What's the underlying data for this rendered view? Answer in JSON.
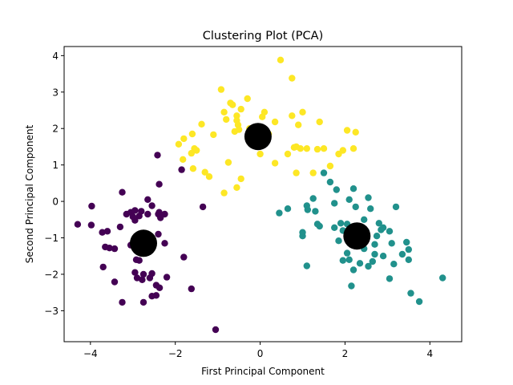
{
  "chart_data": {
    "type": "scatter",
    "title": "Clustering Plot (PCA)",
    "xlabel": "First Principal Component",
    "ylabel": "Second Principal Component",
    "xlim": [
      -4.62,
      4.75
    ],
    "ylim": [
      -3.85,
      4.25
    ],
    "xticks": [
      -4,
      -2,
      0,
      2,
      4
    ],
    "yticks": [
      -3,
      -2,
      -1,
      0,
      1,
      2,
      3,
      4
    ],
    "grid": false,
    "legend": "none",
    "colors": {
      "cluster_0": "#440154",
      "cluster_1": "#21918c",
      "cluster_2": "#fde725",
      "centroid": "#000000"
    },
    "series": [
      {
        "cluster": 0,
        "color": "#440154",
        "points": [
          [
            -4.3,
            -0.63
          ],
          [
            -3.97,
            -0.13
          ],
          [
            -3.98,
            -0.65
          ],
          [
            -3.6,
            -0.82
          ],
          [
            -3.72,
            -0.85
          ],
          [
            -3.55,
            -1.28
          ],
          [
            -3.65,
            -1.25
          ],
          [
            -3.7,
            -1.8
          ],
          [
            -3.43,
            -1.3
          ],
          [
            -3.43,
            -2.21
          ],
          [
            -3.25,
            0.25
          ],
          [
            -3.3,
            -0.7
          ],
          [
            -3.15,
            -0.35
          ],
          [
            -3.05,
            -0.3
          ],
          [
            -3.0,
            -0.42
          ],
          [
            -2.95,
            -0.25
          ],
          [
            -2.95,
            -0.52
          ],
          [
            -2.85,
            -0.4
          ],
          [
            -2.8,
            -0.27
          ],
          [
            -2.9,
            -1.0
          ],
          [
            -3.05,
            -1.2
          ],
          [
            -2.92,
            -1.6
          ],
          [
            -2.85,
            -1.62
          ],
          [
            -2.95,
            -1.95
          ],
          [
            -2.9,
            -2.1
          ],
          [
            -2.75,
            -2.0
          ],
          [
            -2.78,
            -2.15
          ],
          [
            -2.6,
            -2.1
          ],
          [
            -2.55,
            -1.98
          ],
          [
            -2.45,
            -2.3
          ],
          [
            -2.37,
            -2.37
          ],
          [
            -2.55,
            -2.6
          ],
          [
            -2.45,
            -2.58
          ],
          [
            -2.75,
            -2.77
          ],
          [
            -3.25,
            -2.77
          ],
          [
            -2.65,
            -0.35
          ],
          [
            -2.55,
            -0.12
          ],
          [
            -2.65,
            0.05
          ],
          [
            -2.38,
            0.47
          ],
          [
            -2.42,
            1.27
          ],
          [
            -2.4,
            -0.35
          ],
          [
            -2.38,
            -0.3
          ],
          [
            -2.35,
            -0.45
          ],
          [
            -2.25,
            -0.35
          ],
          [
            -2.4,
            -0.9
          ],
          [
            -2.25,
            -1.15
          ],
          [
            -2.2,
            -2.08
          ],
          [
            -1.85,
            0.87
          ],
          [
            -1.8,
            -1.53
          ],
          [
            -1.62,
            -2.4
          ],
          [
            -1.35,
            -0.15
          ],
          [
            -1.05,
            -3.52
          ]
        ]
      },
      {
        "cluster": 1,
        "color": "#21918c",
        "points": [
          [
            0.45,
            -0.32
          ],
          [
            0.65,
            -0.2
          ],
          [
            1.0,
            -0.85
          ],
          [
            1.0,
            -0.95
          ],
          [
            1.1,
            -0.12
          ],
          [
            1.12,
            -0.23
          ],
          [
            1.1,
            -1.77
          ],
          [
            1.25,
            0.08
          ],
          [
            1.3,
            -0.27
          ],
          [
            1.35,
            -0.62
          ],
          [
            1.4,
            -0.68
          ],
          [
            1.5,
            0.78
          ],
          [
            1.65,
            0.53
          ],
          [
            1.75,
            -0.05
          ],
          [
            1.75,
            -0.72
          ],
          [
            1.8,
            0.32
          ],
          [
            1.85,
            -1.08
          ],
          [
            1.9,
            -0.6
          ],
          [
            1.95,
            -0.8
          ],
          [
            1.95,
            -1.62
          ],
          [
            2.05,
            -0.62
          ],
          [
            2.05,
            -1.42
          ],
          [
            2.1,
            0.05
          ],
          [
            2.1,
            -1.6
          ],
          [
            2.15,
            -2.32
          ],
          [
            2.2,
            -1.88
          ],
          [
            2.2,
            0.35
          ],
          [
            2.25,
            -0.15
          ],
          [
            2.3,
            -0.75
          ],
          [
            2.35,
            -1.7
          ],
          [
            2.45,
            -0.5
          ],
          [
            2.45,
            -1.3
          ],
          [
            2.5,
            -0.82
          ],
          [
            2.55,
            0.1
          ],
          [
            2.55,
            -1.78
          ],
          [
            2.6,
            -0.2
          ],
          [
            2.65,
            -1.65
          ],
          [
            2.7,
            -1.18
          ],
          [
            2.7,
            -1.45
          ],
          [
            2.75,
            -0.95
          ],
          [
            2.8,
            -0.6
          ],
          [
            2.85,
            -0.78
          ],
          [
            2.9,
            -0.72
          ],
          [
            2.9,
            -1.5
          ],
          [
            3.05,
            -0.82
          ],
          [
            3.05,
            -2.12
          ],
          [
            3.1,
            -1.15
          ],
          [
            3.15,
            -1.72
          ],
          [
            3.2,
            -0.15
          ],
          [
            3.35,
            -1.45
          ],
          [
            3.45,
            -1.12
          ],
          [
            3.5,
            -1.32
          ],
          [
            3.5,
            -1.6
          ],
          [
            3.55,
            -2.52
          ],
          [
            3.75,
            -2.75
          ],
          [
            4.3,
            -2.1
          ]
        ]
      },
      {
        "cluster": 2,
        "color": "#fde725",
        "points": [
          [
            -1.92,
            1.57
          ],
          [
            -1.82,
            1.15
          ],
          [
            -1.8,
            1.72
          ],
          [
            -1.62,
            1.32
          ],
          [
            -1.6,
            1.85
          ],
          [
            -1.58,
            0.9
          ],
          [
            -1.55,
            1.45
          ],
          [
            -1.5,
            1.4
          ],
          [
            -1.38,
            2.12
          ],
          [
            -1.3,
            0.8
          ],
          [
            -1.2,
            0.68
          ],
          [
            -1.1,
            1.83
          ],
          [
            -0.92,
            3.07
          ],
          [
            -0.85,
            2.45
          ],
          [
            -0.85,
            0.23
          ],
          [
            -0.8,
            2.25
          ],
          [
            -0.75,
            1.07
          ],
          [
            -0.7,
            2.7
          ],
          [
            -0.65,
            2.65
          ],
          [
            -0.6,
            1.92
          ],
          [
            -0.55,
            2.35
          ],
          [
            -0.55,
            2.22
          ],
          [
            -0.52,
            2.1
          ],
          [
            -0.5,
            1.97
          ],
          [
            -0.55,
            0.38
          ],
          [
            -0.45,
            2.53
          ],
          [
            -0.45,
            0.62
          ],
          [
            -0.3,
            2.82
          ],
          [
            -0.25,
            2.0
          ],
          [
            -0.1,
            2.0
          ],
          [
            0.0,
            1.3
          ],
          [
            0.05,
            2.32
          ],
          [
            0.1,
            2.45
          ],
          [
            0.2,
            1.85
          ],
          [
            0.35,
            2.18
          ],
          [
            0.35,
            1.05
          ],
          [
            0.48,
            3.88
          ],
          [
            0.65,
            1.3
          ],
          [
            0.75,
            3.38
          ],
          [
            0.75,
            2.35
          ],
          [
            0.8,
            1.48
          ],
          [
            0.85,
            1.5
          ],
          [
            0.85,
            0.78
          ],
          [
            0.9,
            2.1
          ],
          [
            0.95,
            1.45
          ],
          [
            1.0,
            2.45
          ],
          [
            1.1,
            1.45
          ],
          [
            1.25,
            0.78
          ],
          [
            1.35,
            1.43
          ],
          [
            1.4,
            2.18
          ],
          [
            1.5,
            1.45
          ],
          [
            1.65,
            0.97
          ],
          [
            1.85,
            1.3
          ],
          [
            1.95,
            1.4
          ],
          [
            2.05,
            1.95
          ],
          [
            2.2,
            1.45
          ],
          [
            2.25,
            1.9
          ]
        ]
      }
    ],
    "centroids": [
      [
        -2.75,
        -1.15
      ],
      [
        -0.05,
        1.78
      ],
      [
        2.28,
        -0.95
      ]
    ]
  }
}
